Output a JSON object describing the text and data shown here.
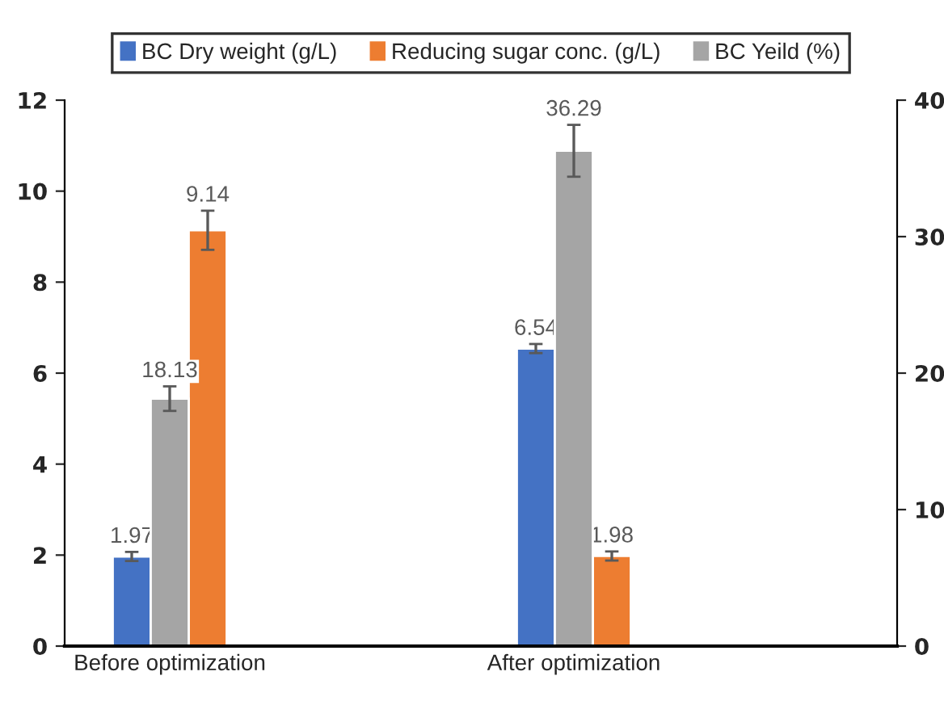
{
  "chart_data": {
    "type": "bar",
    "categories": [
      "Before optimization",
      "After optimization"
    ],
    "series": [
      {
        "name": "BC Dry weight (g/L)",
        "color": "#4472c4",
        "values": [
          1.97,
          6.54
        ],
        "errors": [
          0.1,
          0.1
        ]
      },
      {
        "name": "BC Yeild (%)",
        "color": "#a5a5a5",
        "values": [
          18.13,
          36.29
        ],
        "errors": [
          0.9,
          1.9
        ],
        "axis": "y2"
      },
      {
        "name": "Reducing sugar conc. (g/L)",
        "color": "#ed7d31",
        "values": [
          9.14,
          1.98
        ],
        "errors": [
          0.43,
          0.1
        ]
      }
    ],
    "ylim": [
      0,
      12
    ],
    "yticks": [
      0,
      2,
      4,
      6,
      8,
      10,
      12
    ],
    "y2lim": [
      0,
      40
    ],
    "y2ticks": [
      0,
      10,
      20,
      30,
      40
    ],
    "data_labels": true,
    "grid": false,
    "legend": "top"
  }
}
